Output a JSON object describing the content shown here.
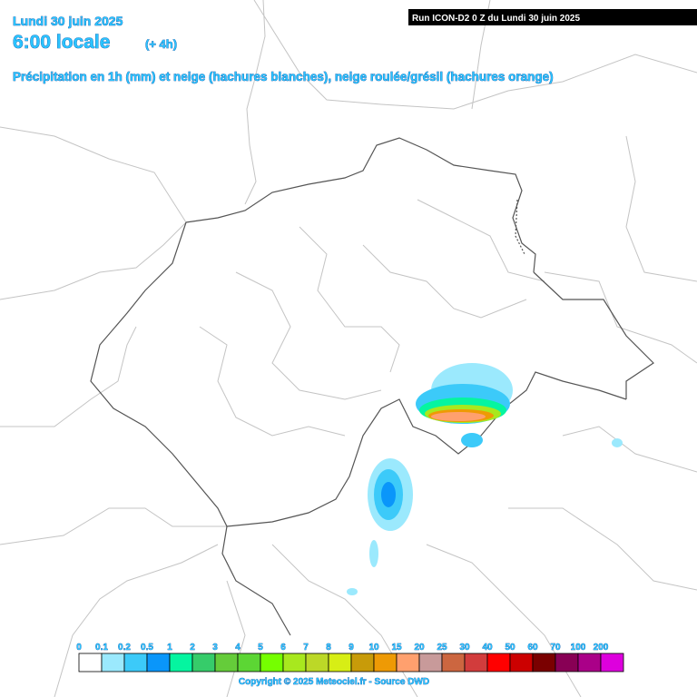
{
  "header": {
    "date": "Lundi 30 juin 2025",
    "time": "6:00 locale",
    "offset": "(+ 4h)",
    "subtitle": "Précipitation en 1h (mm) et neige (hachures blanches), neige roulée/grésil (hachures orange)",
    "run": "Run ICON-D2 0 Z du Lundi 30 juin 2025"
  },
  "legend": [
    {
      "label": "0",
      "color": "#ffffff"
    },
    {
      "label": "0.1",
      "color": "#9be9fd"
    },
    {
      "label": "0.2",
      "color": "#3ccaf9"
    },
    {
      "label": "0.5",
      "color": "#0a96fa"
    },
    {
      "label": "1",
      "color": "#05f5a0"
    },
    {
      "label": "2",
      "color": "#36cc6a"
    },
    {
      "label": "3",
      "color": "#65cc3a"
    },
    {
      "label": "4",
      "color": "#5cd634"
    },
    {
      "label": "5",
      "color": "#75ff00"
    },
    {
      "label": "6",
      "color": "#a8e81e"
    },
    {
      "label": "7",
      "color": "#bcd827"
    },
    {
      "label": "8",
      "color": "#d7ee15"
    },
    {
      "label": "9",
      "color": "#c89b09"
    },
    {
      "label": "10",
      "color": "#ee9a05"
    },
    {
      "label": "15",
      "color": "#ffa06e"
    },
    {
      "label": "20",
      "color": "#c89a9a"
    },
    {
      "label": "25",
      "color": "#cc6640"
    },
    {
      "label": "30",
      "color": "#d23c3c"
    },
    {
      "label": "40",
      "color": "#ff0000"
    },
    {
      "label": "50",
      "color": "#cc0000"
    },
    {
      "label": "60",
      "color": "#7a0000"
    },
    {
      "label": "70",
      "color": "#880055"
    },
    {
      "label": "100",
      "color": "#aa0088"
    },
    {
      "label": "200",
      "color": "#dd00dd"
    }
  ],
  "footer": {
    "copyright": "Copyright © 2025 Meteociel.fr - Source DWD"
  }
}
